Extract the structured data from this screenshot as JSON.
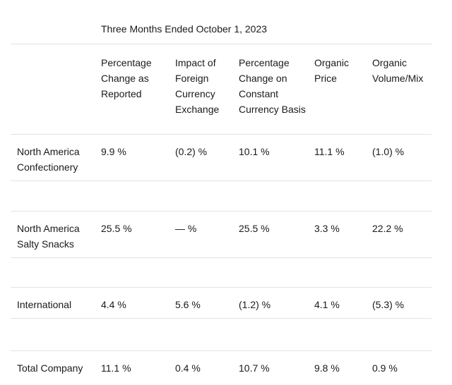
{
  "table": {
    "title": "Three Months Ended October 1, 2023",
    "column_headers": [
      "Percentage Change as Reported",
      "Impact of Foreign Currency Exchange",
      "Percentage Change on Constant Currency Basis",
      "Organic Price",
      "Organic Volume/Mix"
    ],
    "rows": [
      {
        "label": "North America Confectionery",
        "values": [
          "9.9 %",
          "(0.2) %",
          "10.1 %",
          "11.1 %",
          "(1.0) %"
        ]
      },
      {
        "label": "North America Salty Snacks",
        "values": [
          "25.5 %",
          "— %",
          "25.5 %",
          "3.3 %",
          "22.2 %"
        ]
      },
      {
        "label": "International",
        "values": [
          "4.4 %",
          "5.6 %",
          "(1.2) %",
          "4.1 %",
          "(5.3) %"
        ]
      },
      {
        "label": "Total Company",
        "values": [
          "11.1 %",
          "0.4 %",
          "10.7 %",
          "9.8 %",
          "0.9 %"
        ]
      }
    ]
  },
  "colors": {
    "background": "#ffffff",
    "text": "#1a1a1a",
    "divider": "#e3e3e3"
  }
}
